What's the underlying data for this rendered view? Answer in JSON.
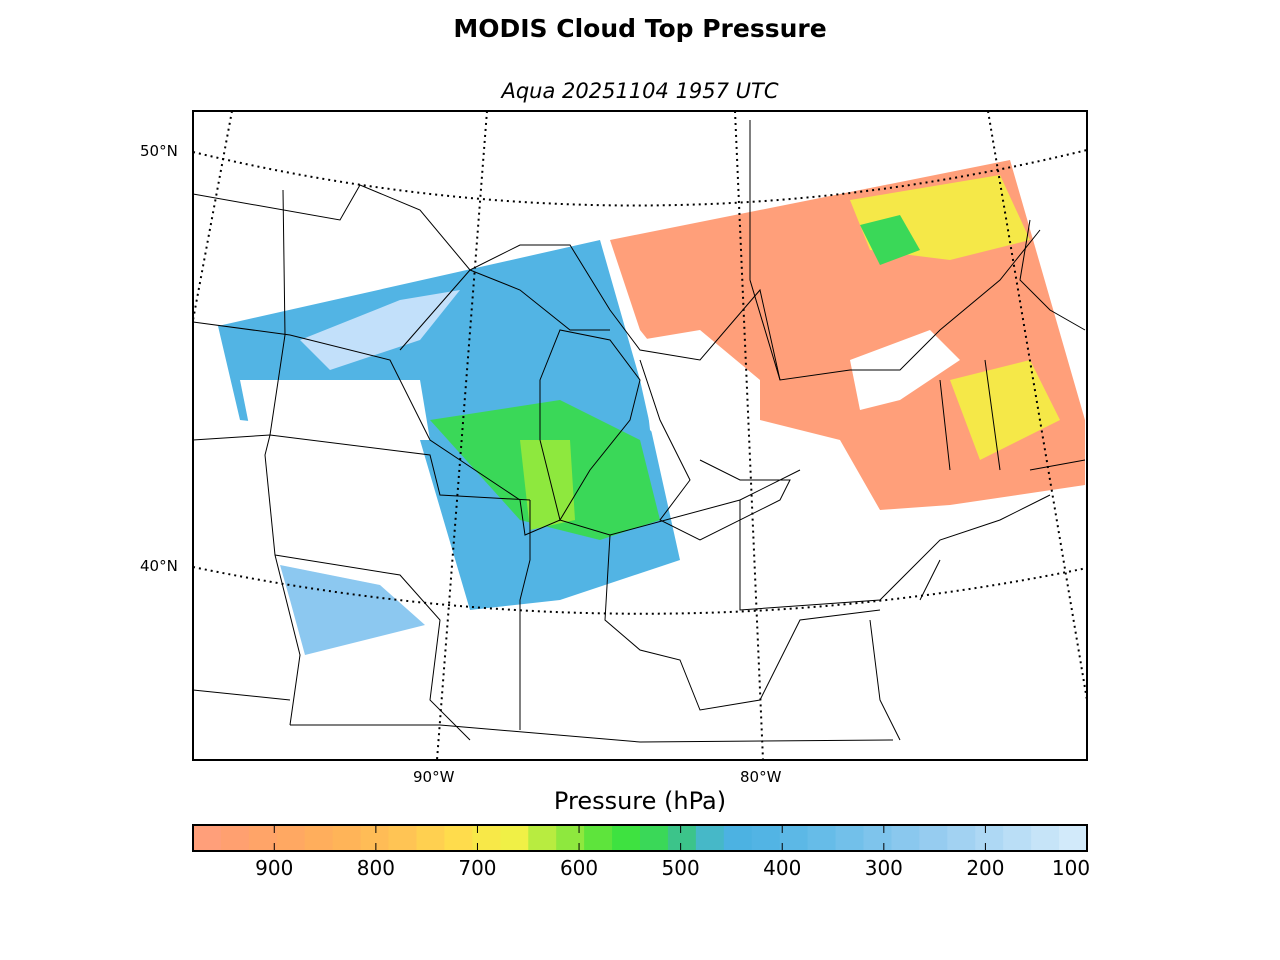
{
  "title": "MODIS Cloud Top Pressure",
  "subtitle": "Aqua 20251104 1957 UTC",
  "map": {
    "lat_labels": [
      "50°N",
      "40°N"
    ],
    "lon_labels": [
      "90°W",
      "80°W"
    ],
    "colors": {
      "low_cloud": "#ff9f7a",
      "mid_low": "#ffb060",
      "mid": "#f5e848",
      "mid_green": "#8ee83e",
      "green": "#3ad858",
      "teal": "#3cc48a",
      "blue": "#52b4e4",
      "light_blue": "#8cc8f0",
      "pale_blue": "#c2e0fa"
    }
  },
  "colorbar": {
    "label": "Pressure (hPa)",
    "ticks": [
      "900",
      "800",
      "700",
      "600",
      "500",
      "400",
      "300",
      "200",
      "100"
    ],
    "colors": [
      "#ff9f7a",
      "#ffa070",
      "#ffa468",
      "#ffa862",
      "#ffae5c",
      "#ffb458",
      "#ffbc56",
      "#ffc454",
      "#ffd050",
      "#ffdc4c",
      "#f8e848",
      "#f0f046",
      "#b8ec40",
      "#8ee83e",
      "#5ee43c",
      "#3ee240",
      "#3ad858",
      "#3cc48a",
      "#46b8c8",
      "#4cb2e2",
      "#52b4e4",
      "#5cb8e6",
      "#66bce8",
      "#72c0ea",
      "#7ec4ec",
      "#8ac8ee",
      "#96ccf0",
      "#a2d2f2",
      "#aed8f4",
      "#badef6",
      "#c6e4f8",
      "#d2eafa"
    ]
  }
}
